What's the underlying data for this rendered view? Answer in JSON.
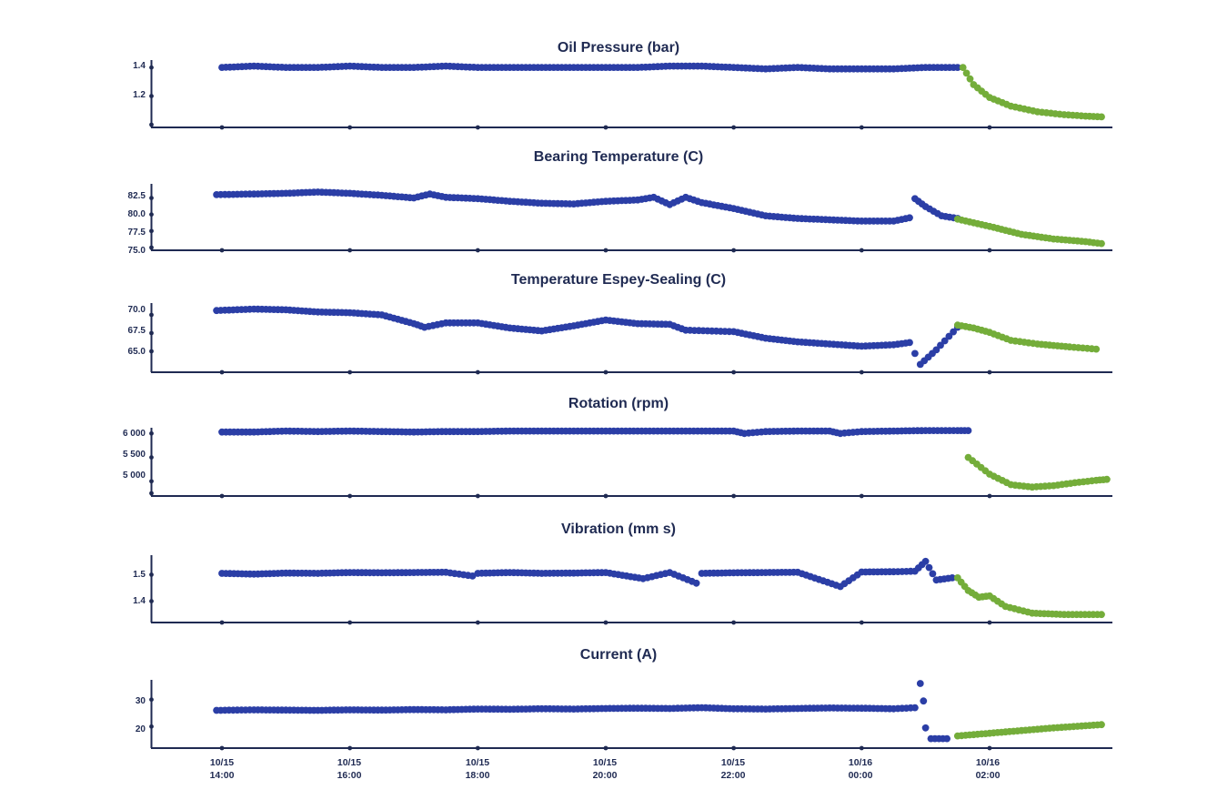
{
  "colors": {
    "axis": "#1f2a52",
    "series_normal": "#2b3ea6",
    "series_after": "#74ad3a",
    "background": "#ffffff"
  },
  "x_axis": {
    "ticks": [
      {
        "date": "10/15",
        "time": "14:00"
      },
      {
        "date": "10/15",
        "time": "16:00"
      },
      {
        "date": "10/15",
        "time": "18:00"
      },
      {
        "date": "10/15",
        "time": "20:00"
      },
      {
        "date": "10/15",
        "time": "22:00"
      },
      {
        "date": "10/16",
        "time": "00:00"
      },
      {
        "date": "10/16",
        "time": "02:00"
      }
    ],
    "range": [
      "2024-10-15T12:54",
      "2024-10-16T04:03"
    ]
  },
  "chart_data": [
    {
      "type": "scatter",
      "title": "Oil Pressure (bar)",
      "ytick_labels": [
        "1.4",
        "1.2"
      ],
      "yticks": [
        1.4,
        1.2
      ],
      "ylim": [
        1.0,
        1.42
      ],
      "show_bottom_tick": true,
      "series": [
        {
          "color": "blue",
          "points": [
            [
              "10/15 14:00",
              1.4
            ],
            [
              "10/15 14:30",
              1.41
            ],
            [
              "10/15 15:00",
              1.4
            ],
            [
              "10/15 15:30",
              1.4
            ],
            [
              "10/15 16:00",
              1.41
            ],
            [
              "10/15 16:30",
              1.4
            ],
            [
              "10/15 17:00",
              1.4
            ],
            [
              "10/15 17:30",
              1.41
            ],
            [
              "10/15 18:00",
              1.4
            ],
            [
              "10/15 18:30",
              1.4
            ],
            [
              "10/15 19:00",
              1.4
            ],
            [
              "10/15 19:30",
              1.4
            ],
            [
              "10/15 20:00",
              1.4
            ],
            [
              "10/15 20:30",
              1.4
            ],
            [
              "10/15 21:00",
              1.41
            ],
            [
              "10/15 21:30",
              1.41
            ],
            [
              "10/15 22:00",
              1.4
            ],
            [
              "10/15 22:30",
              1.39
            ],
            [
              "10/15 23:00",
              1.4
            ],
            [
              "10/15 23:30",
              1.39
            ],
            [
              "10/16 00:00",
              1.39
            ],
            [
              "10/16 00:30",
              1.39
            ],
            [
              "10/16 01:00",
              1.4
            ],
            [
              "10/16 01:30",
              1.4
            ]
          ]
        },
        {
          "color": "green",
          "points": [
            [
              "10/16 01:35",
              1.4
            ],
            [
              "10/16 01:45",
              1.28
            ],
            [
              "10/16 02:00",
              1.19
            ],
            [
              "10/16 02:20",
              1.13
            ],
            [
              "10/16 02:45",
              1.09
            ],
            [
              "10/16 03:10",
              1.07
            ],
            [
              "10/16 03:30",
              1.06
            ],
            [
              "10/16 03:45",
              1.055
            ]
          ]
        }
      ]
    },
    {
      "type": "scatter",
      "title": "Bearing Temperature (C)",
      "ytick_labels": [
        "82.5",
        "80.0",
        "77.5",
        "75.0"
      ],
      "yticks": [
        82.5,
        80.0,
        77.5,
        75.0
      ],
      "ylim": [
        75.0,
        84.5
      ],
      "show_bottom_tick": false,
      "series": [
        {
          "color": "blue",
          "points": [
            [
              "10/15 13:55",
              83.0
            ],
            [
              "10/15 14:30",
              83.1
            ],
            [
              "10/15 15:00",
              83.2
            ],
            [
              "10/15 15:30",
              83.4
            ],
            [
              "10/15 16:00",
              83.2
            ],
            [
              "10/15 16:30",
              82.9
            ],
            [
              "10/15 17:00",
              82.5
            ],
            [
              "10/15 17:15",
              83.1
            ],
            [
              "10/15 17:30",
              82.6
            ],
            [
              "10/15 18:00",
              82.4
            ],
            [
              "10/15 18:30",
              82.0
            ],
            [
              "10/15 19:00",
              81.7
            ],
            [
              "10/15 19:30",
              81.6
            ],
            [
              "10/15 20:00",
              82.0
            ],
            [
              "10/15 20:30",
              82.2
            ],
            [
              "10/15 20:45",
              82.6
            ],
            [
              "10/15 21:00",
              81.5
            ],
            [
              "10/15 21:15",
              82.6
            ],
            [
              "10/15 21:30",
              81.8
            ],
            [
              "10/15 22:00",
              80.9
            ],
            [
              "10/15 22:30",
              79.8
            ],
            [
              "10/15 23:00",
              79.4
            ],
            [
              "10/15 23:30",
              79.2
            ],
            [
              "10/16 00:00",
              79.0
            ],
            [
              "10/16 00:30",
              79.0
            ],
            [
              "10/16 00:45",
              79.5
            ],
            [
              "10/16 00:50",
              82.4
            ],
            [
              "10/16 01:00",
              81.2
            ],
            [
              "10/16 01:15",
              79.8
            ],
            [
              "10/16 01:30",
              79.4
            ]
          ]
        },
        {
          "color": "green",
          "points": [
            [
              "10/16 01:30",
              79.3
            ],
            [
              "10/16 02:00",
              78.2
            ],
            [
              "10/16 02:30",
              77.0
            ],
            [
              "10/16 03:00",
              76.3
            ],
            [
              "10/16 03:30",
              75.9
            ],
            [
              "10/16 03:45",
              75.6
            ]
          ]
        }
      ]
    },
    {
      "type": "scatter",
      "title": "Temperature Espey-Sealing (C)",
      "ytick_labels": [
        "70.0",
        "67.5",
        "65.0"
      ],
      "yticks": [
        70.0,
        67.5,
        65.0
      ],
      "ylim": [
        62.5,
        71.5
      ],
      "show_bottom_tick": false,
      "series": [
        {
          "color": "blue",
          "points": [
            [
              "10/15 13:55",
              70.6
            ],
            [
              "10/15 14:30",
              70.8
            ],
            [
              "10/15 15:00",
              70.7
            ],
            [
              "10/15 15:30",
              70.4
            ],
            [
              "10/15 16:00",
              70.3
            ],
            [
              "10/15 16:30",
              70.0
            ],
            [
              "10/15 17:00",
              68.8
            ],
            [
              "10/15 17:10",
              68.3
            ],
            [
              "10/15 17:30",
              68.9
            ],
            [
              "10/15 18:00",
              68.9
            ],
            [
              "10/15 18:30",
              68.2
            ],
            [
              "10/15 19:00",
              67.8
            ],
            [
              "10/15 19:30",
              68.5
            ],
            [
              "10/15 20:00",
              69.3
            ],
            [
              "10/15 20:30",
              68.8
            ],
            [
              "10/15 21:00",
              68.7
            ],
            [
              "10/15 21:15",
              67.9
            ],
            [
              "10/15 22:00",
              67.7
            ],
            [
              "10/15 22:30",
              66.8
            ],
            [
              "10/15 23:00",
              66.3
            ],
            [
              "10/15 23:30",
              66.0
            ],
            [
              "10/16 00:00",
              65.7
            ],
            [
              "10/16 00:30",
              65.9
            ],
            [
              "10/16 00:45",
              66.2
            ],
            [
              "10/16 00:50",
              64.7
            ],
            [
              "10/16 00:55",
              63.2
            ],
            [
              "10/16 01:10",
              65.2
            ],
            [
              "10/16 01:30",
              68.3
            ]
          ]
        },
        {
          "color": "green",
          "points": [
            [
              "10/16 01:30",
              68.6
            ],
            [
              "10/16 01:45",
              68.2
            ],
            [
              "10/16 02:00",
              67.6
            ],
            [
              "10/16 02:20",
              66.5
            ],
            [
              "10/16 02:45",
              66.0
            ],
            [
              "10/16 03:15",
              65.6
            ],
            [
              "10/16 03:40",
              65.3
            ]
          ]
        }
      ]
    },
    {
      "type": "scatter",
      "title": "Rotation (rpm)",
      "ytick_labels": [
        "6 000",
        "5 500",
        "5 000"
      ],
      "yticks": [
        6000,
        5500,
        5000
      ],
      "ylim": [
        4750,
        6100
      ],
      "show_bottom_tick": true,
      "series": [
        {
          "color": "blue",
          "points": [
            [
              "10/15 14:00",
              6030
            ],
            [
              "10/15 14:30",
              6030
            ],
            [
              "10/15 15:00",
              6050
            ],
            [
              "10/15 15:30",
              6040
            ],
            [
              "10/15 16:00",
              6050
            ],
            [
              "10/15 16:30",
              6040
            ],
            [
              "10/15 17:00",
              6030
            ],
            [
              "10/15 17:30",
              6040
            ],
            [
              "10/15 18:00",
              6040
            ],
            [
              "10/15 18:30",
              6050
            ],
            [
              "10/15 19:00",
              6050
            ],
            [
              "10/15 19:30",
              6050
            ],
            [
              "10/15 20:00",
              6050
            ],
            [
              "10/15 20:30",
              6050
            ],
            [
              "10/15 21:00",
              6050
            ],
            [
              "10/15 21:30",
              6050
            ],
            [
              "10/15 22:00",
              6050
            ],
            [
              "10/15 22:10",
              6000
            ],
            [
              "10/15 22:30",
              6040
            ],
            [
              "10/15 23:00",
              6050
            ],
            [
              "10/15 23:30",
              6050
            ],
            [
              "10/15 23:40",
              6000
            ],
            [
              "10/16 00:00",
              6040
            ],
            [
              "10/16 00:30",
              6050
            ],
            [
              "10/16 01:00",
              6060
            ],
            [
              "10/16 01:30",
              6060
            ],
            [
              "10/16 01:40",
              6060
            ]
          ]
        },
        {
          "color": "green",
          "points": [
            [
              "10/16 01:40",
              5500
            ],
            [
              "10/16 02:00",
              5150
            ],
            [
              "10/16 02:20",
              4930
            ],
            [
              "10/16 02:40",
              4880
            ],
            [
              "10/16 03:00",
              4910
            ],
            [
              "10/16 03:20",
              4970
            ],
            [
              "10/16 03:40",
              5020
            ],
            [
              "10/16 03:50",
              5040
            ]
          ]
        }
      ]
    },
    {
      "type": "scatter",
      "title": "Vibration (mm s)",
      "ytick_labels": [
        "1.5",
        "1.4"
      ],
      "yticks": [
        1.5,
        1.4
      ],
      "ylim": [
        1.33,
        1.57
      ],
      "show_bottom_tick": false,
      "series": [
        {
          "color": "blue",
          "points": [
            [
              "10/15 14:00",
              1.505
            ],
            [
              "10/15 14:30",
              1.502
            ],
            [
              "10/15 15:00",
              1.506
            ],
            [
              "10/15 15:30",
              1.505
            ],
            [
              "10/15 16:00",
              1.508
            ],
            [
              "10/15 16:30",
              1.507
            ],
            [
              "10/15 17:00",
              1.508
            ],
            [
              "10/15 17:30",
              1.509
            ],
            [
              "10/15 17:55",
              1.495
            ],
            [
              "10/15 18:00",
              1.505
            ],
            [
              "10/15 18:30",
              1.508
            ],
            [
              "10/15 19:00",
              1.505
            ],
            [
              "10/15 19:30",
              1.506
            ],
            [
              "10/15 20:00",
              1.508
            ],
            [
              "10/15 20:35",
              1.485
            ],
            [
              "10/15 21:00",
              1.508
            ],
            [
              "10/15 21:25",
              1.468
            ],
            [
              "10/15 21:30",
              1.505
            ],
            [
              "10/15 22:00",
              1.507
            ],
            [
              "10/15 22:30",
              1.508
            ],
            [
              "10/15 23:00",
              1.509
            ],
            [
              "10/15 23:40",
              1.455
            ],
            [
              "10/16 00:00",
              1.51
            ],
            [
              "10/16 00:30",
              1.511
            ],
            [
              "10/16 00:50",
              1.513
            ],
            [
              "10/16 01:00",
              1.55
            ],
            [
              "10/16 01:10",
              1.48
            ],
            [
              "10/16 01:25",
              1.488
            ]
          ]
        },
        {
          "color": "green",
          "points": [
            [
              "10/16 01:30",
              1.488
            ],
            [
              "10/16 01:40",
              1.44
            ],
            [
              "10/16 01:50",
              1.415
            ],
            [
              "10/16 02:00",
              1.42
            ],
            [
              "10/16 02:15",
              1.38
            ],
            [
              "10/16 02:40",
              1.355
            ],
            [
              "10/16 03:10",
              1.35
            ],
            [
              "10/16 03:45",
              1.35
            ]
          ]
        }
      ]
    },
    {
      "type": "scatter",
      "title": "Current (A)",
      "ytick_labels": [
        "30",
        "20"
      ],
      "yticks": [
        30,
        20
      ],
      "ylim": [
        13,
        37
      ],
      "show_bottom_tick": false,
      "series": [
        {
          "color": "blue",
          "points": [
            [
              "10/15 13:55",
              26.0
            ],
            [
              "10/15 14:30",
              26.2
            ],
            [
              "10/15 15:00",
              26.1
            ],
            [
              "10/15 15:30",
              26.0
            ],
            [
              "10/15 16:00",
              26.2
            ],
            [
              "10/15 16:30",
              26.1
            ],
            [
              "10/15 17:00",
              26.3
            ],
            [
              "10/15 17:30",
              26.2
            ],
            [
              "10/15 18:00",
              26.5
            ],
            [
              "10/15 18:30",
              26.4
            ],
            [
              "10/15 19:00",
              26.6
            ],
            [
              "10/15 19:30",
              26.5
            ],
            [
              "10/15 20:00",
              26.7
            ],
            [
              "10/15 20:30",
              26.8
            ],
            [
              "10/15 21:00",
              26.7
            ],
            [
              "10/15 21:30",
              27.0
            ],
            [
              "10/15 22:00",
              26.6
            ],
            [
              "10/15 22:30",
              26.5
            ],
            [
              "10/15 23:00",
              26.7
            ],
            [
              "10/15 23:30",
              26.9
            ],
            [
              "10/16 00:00",
              26.8
            ],
            [
              "10/16 00:30",
              26.6
            ],
            [
              "10/16 00:50",
              27.0
            ],
            [
              "10/16 00:55",
              36.0
            ],
            [
              "10/16 00:58",
              29.5
            ],
            [
              "10/16 01:00",
              19.5
            ],
            [
              "10/16 01:05",
              15.5
            ],
            [
              "10/16 01:20",
              15.5
            ]
          ]
        },
        {
          "color": "green",
          "points": [
            [
              "10/16 01:30",
              16.5
            ],
            [
              "10/16 02:00",
              17.5
            ],
            [
              "10/16 02:30",
              18.5
            ],
            [
              "10/16 03:00",
              19.5
            ],
            [
              "10/16 03:30",
              20.3
            ],
            [
              "10/16 03:45",
              20.7
            ]
          ]
        }
      ]
    }
  ]
}
